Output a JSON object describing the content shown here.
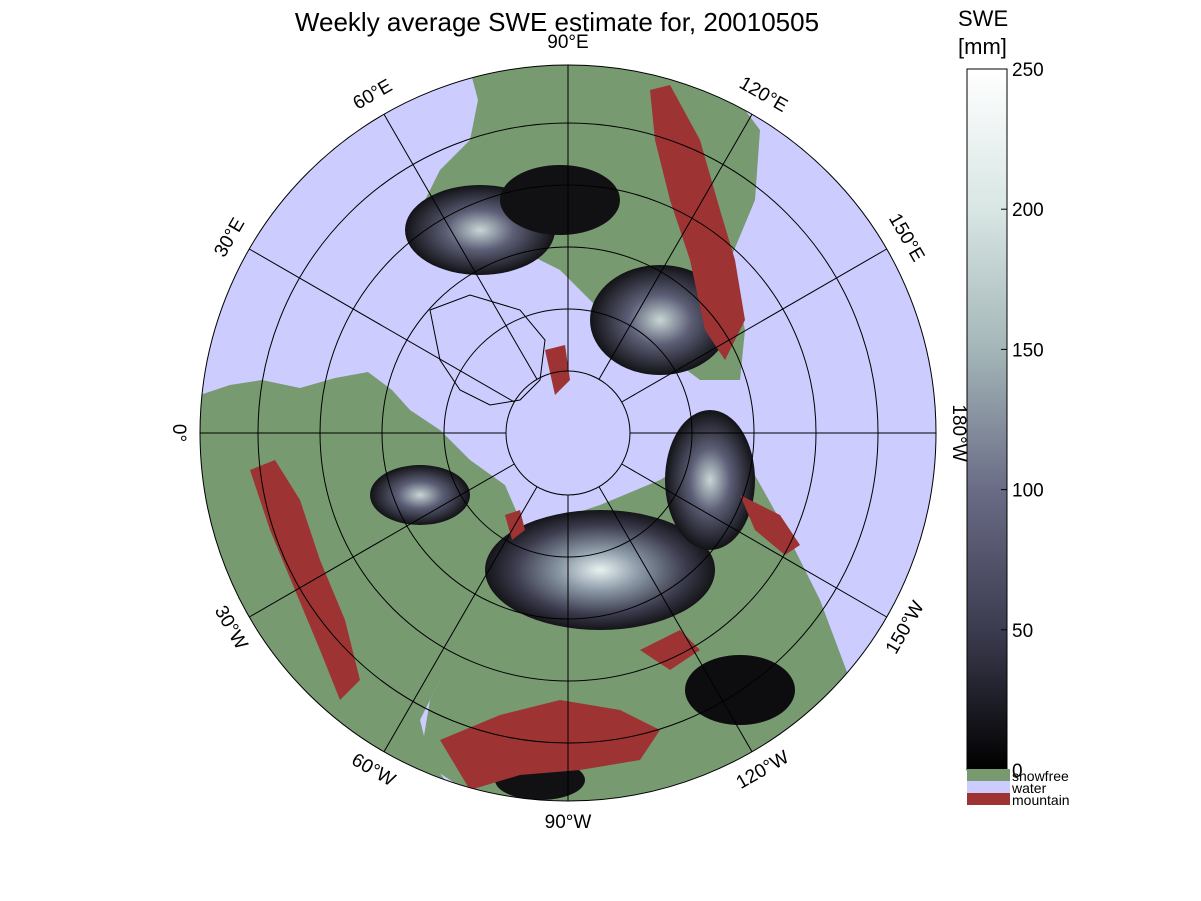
{
  "title": "Weekly average SWE estimate for, 20010505",
  "colorbar": {
    "label_line1": "SWE",
    "label_line2": "[mm]",
    "ticks": [
      "0",
      "50",
      "100",
      "150",
      "200",
      "250"
    ],
    "tick_values": [
      0,
      50,
      100,
      150,
      200,
      250
    ],
    "range": [
      0,
      250
    ],
    "colors": [
      "#000000",
      "#3c3c50",
      "#6a6c86",
      "#a4b6b8",
      "#d8e6e4",
      "#ffffff"
    ]
  },
  "legend": [
    {
      "label": "snowfree",
      "color": "#779a71"
    },
    {
      "label": "water",
      "color": "#ccccff"
    },
    {
      "label": "mountain",
      "color": "#9e3333"
    }
  ],
  "longitude_labels": [
    {
      "text": "90°W",
      "lon": -90
    },
    {
      "text": "120°W",
      "lon": -120
    },
    {
      "text": "150°W",
      "lon": -150
    },
    {
      "text": "180°W",
      "lon": 180
    },
    {
      "text": "150°E",
      "lon": 150
    },
    {
      "text": "120°E",
      "lon": 120
    },
    {
      "text": "90°E",
      "lon": 90
    },
    {
      "text": "60°E",
      "lon": 60
    },
    {
      "text": "30°E",
      "lon": 30
    },
    {
      "text": "0°",
      "lon": 0
    },
    {
      "text": "30°W",
      "lon": -30
    },
    {
      "text": "60°W",
      "lon": -60
    }
  ],
  "map": {
    "projection": "polar stereographic",
    "colors": {
      "water": "#ccccff",
      "land": "#779a71",
      "mountain": "#9e3333",
      "no_snow_dark": "#0a0a0a",
      "frame": "#000000"
    }
  }
}
